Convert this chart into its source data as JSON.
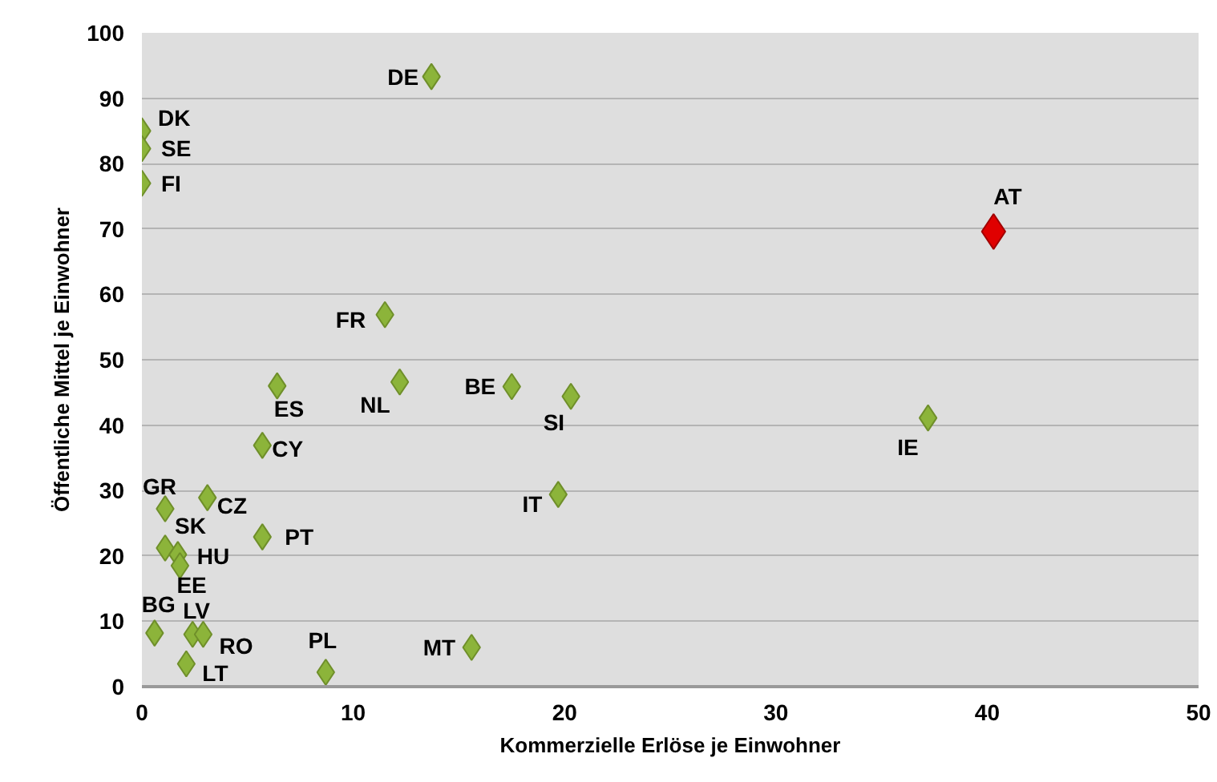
{
  "chart_data": {
    "type": "scatter",
    "xlabel": "Kommerzielle Erlöse je Einwohner",
    "ylabel": "Öffentliche Mittel je Einwohner",
    "xlim": [
      0,
      50
    ],
    "xticks": [
      0,
      10,
      20,
      30,
      40,
      50
    ],
    "ylim": [
      0,
      100
    ],
    "yticks": [
      0,
      10,
      20,
      30,
      40,
      50,
      60,
      70,
      80,
      90,
      100
    ],
    "grid": "y",
    "marker": "diamond",
    "series": [
      {
        "color": "#8cb43a",
        "x": [
          13.7,
          0,
          0,
          0,
          11.5,
          6.4,
          12.2,
          17.5,
          20.3,
          37.2,
          5.7,
          19.7,
          1.1,
          3.1,
          5.7,
          1.1,
          1.7,
          1.8,
          0.6,
          2.4,
          2.9,
          2.1,
          8.7,
          15.6
        ],
        "values": [
          93.3,
          85,
          82.3,
          77,
          56.9,
          46,
          46.6,
          45.9,
          44.4,
          41.1,
          36.9,
          29.4,
          27.2,
          28.9,
          22.9,
          21.2,
          20.2,
          18.5,
          8.2,
          8,
          8,
          3.5,
          2.2,
          6
        ]
      },
      {
        "color": "#e00000",
        "x": [
          40.3
        ],
        "values": [
          69.6
        ]
      }
    ],
    "annotations": [
      {
        "text": "DE",
        "x": 13.7,
        "y": 93.3
      },
      {
        "text": "DK",
        "x": 0,
        "y": 85
      },
      {
        "text": "SE",
        "x": 0,
        "y": 82.3
      },
      {
        "text": "FI",
        "x": 0,
        "y": 77
      },
      {
        "text": "AT",
        "x": 40.3,
        "y": 69.6
      },
      {
        "text": "FR",
        "x": 11.5,
        "y": 56.9
      },
      {
        "text": "ES",
        "x": 6.4,
        "y": 46
      },
      {
        "text": "NL",
        "x": 12.2,
        "y": 46.6
      },
      {
        "text": "BE",
        "x": 17.5,
        "y": 45.9
      },
      {
        "text": "SI",
        "x": 20.3,
        "y": 44.4
      },
      {
        "text": "IE",
        "x": 37.2,
        "y": 41.1
      },
      {
        "text": "CY",
        "x": 5.7,
        "y": 36.9
      },
      {
        "text": "IT",
        "x": 19.7,
        "y": 29.4
      },
      {
        "text": "GR",
        "x": 1.1,
        "y": 27.2
      },
      {
        "text": "CZ",
        "x": 3.1,
        "y": 28.9
      },
      {
        "text": "PT",
        "x": 5.7,
        "y": 22.9
      },
      {
        "text": "SK",
        "x": 1.1,
        "y": 21.2
      },
      {
        "text": "HU",
        "x": 1.7,
        "y": 20.2
      },
      {
        "text": "EE",
        "x": 1.8,
        "y": 18.5
      },
      {
        "text": "BG",
        "x": 0.6,
        "y": 8.2
      },
      {
        "text": "LV",
        "x": 2.4,
        "y": 8
      },
      {
        "text": "RO",
        "x": 2.9,
        "y": 8
      },
      {
        "text": "LT",
        "x": 2.1,
        "y": 3.5
      },
      {
        "text": "PL",
        "x": 8.7,
        "y": 2.2
      },
      {
        "text": "MT",
        "x": 15.6,
        "y": 6
      }
    ]
  }
}
